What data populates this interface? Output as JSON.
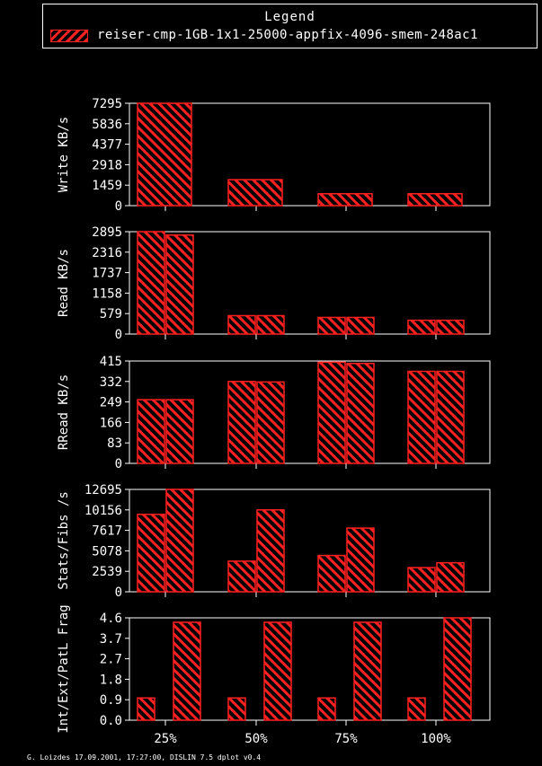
{
  "legend": {
    "title": "Legend",
    "label": "reiser-cmp-1GB-1x1-25000-appfix-4096-smem-248ac1",
    "color": "#ff2020"
  },
  "footer": "G. Loizdes 17.09.2001, 17:27:00, DISLIN 7.5 dplot v0.4",
  "chart_data": [
    {
      "type": "bar",
      "ylabel": "Write KB/s",
      "ylim": [
        0,
        7295
      ],
      "yticks": [
        "0",
        "1459",
        "2918",
        "4377",
        "5836",
        "7295"
      ],
      "categories": [
        "25%",
        "50%",
        "75%",
        "100%"
      ],
      "series": [
        {
          "values": [
            7295,
            1850,
            850,
            850
          ]
        }
      ]
    },
    {
      "type": "bar",
      "ylabel": "Read KB/s",
      "ylim": [
        0,
        2895
      ],
      "yticks": [
        "0",
        "579",
        "1158",
        "1737",
        "2316",
        "2895"
      ],
      "categories": [
        "25%",
        "50%",
        "75%",
        "100%"
      ],
      "series": [
        {
          "values": [
            2895,
            520,
            470,
            390
          ]
        },
        {
          "values": [
            2800,
            520,
            470,
            390
          ]
        }
      ]
    },
    {
      "type": "bar",
      "ylabel": "RRead KB/s",
      "ylim": [
        0,
        415
      ],
      "yticks": [
        "0",
        "83",
        "166",
        "249",
        "332",
        "415"
      ],
      "categories": [
        "25%",
        "50%",
        "75%",
        "100%"
      ],
      "series": [
        {
          "values": [
            258,
            332,
            410,
            373
          ]
        },
        {
          "values": [
            258,
            330,
            405,
            373
          ]
        }
      ]
    },
    {
      "type": "bar",
      "ylabel": "Stats/Fibs /s",
      "ylim": [
        0,
        12695
      ],
      "yticks": [
        "0",
        "2539",
        "5078",
        "7617",
        "10156",
        "12695"
      ],
      "categories": [
        "25%",
        "50%",
        "75%",
        "100%"
      ],
      "series": [
        {
          "values": [
            9600,
            3800,
            4500,
            3000
          ]
        },
        {
          "values": [
            12700,
            10156,
            7900,
            3600
          ]
        }
      ]
    },
    {
      "type": "bar",
      "ylabel": "Int/Ext/PatL Frag",
      "ylim": [
        0,
        4.6
      ],
      "yticks": [
        "0.0",
        "0.9",
        "1.8",
        "2.7",
        "3.7",
        "4.6"
      ],
      "categories": [
        "25%",
        "50%",
        "75%",
        "100%"
      ],
      "series": [
        {
          "values": [
            1.0,
            1.0,
            1.0,
            1.0
          ]
        },
        {
          "values": [
            4.4,
            4.4,
            4.4,
            4.6
          ]
        }
      ]
    }
  ]
}
